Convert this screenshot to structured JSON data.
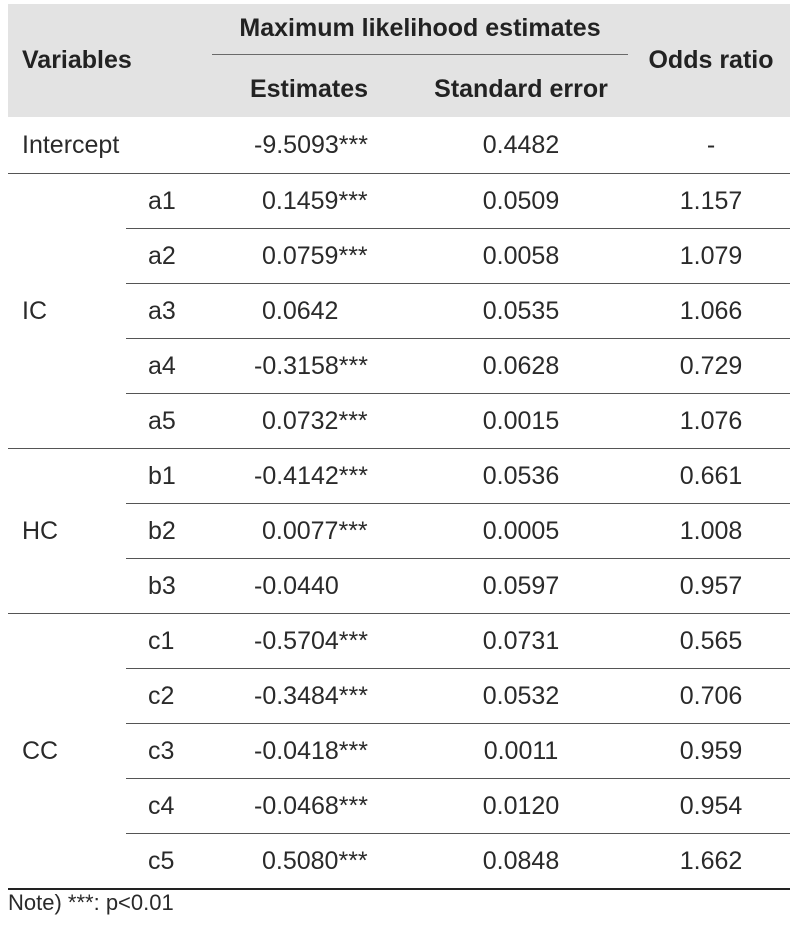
{
  "table": {
    "header": {
      "variables": "Variables",
      "mle": "Maximum likelihood estimates",
      "estimates": "Estimates",
      "standard_error": "Standard error",
      "odds_ratio": "Odds ratio"
    },
    "intercept": {
      "label": "Intercept",
      "estimate": "-9.5093***",
      "se": "0.4482",
      "or": "-"
    },
    "groups": [
      {
        "name": "IC",
        "rows": [
          {
            "var": "a1",
            "estimate": "0.1459***",
            "se": "0.0509",
            "or": "1.157"
          },
          {
            "var": "a2",
            "estimate": "0.0759***",
            "se": "0.0058",
            "or": "1.079"
          },
          {
            "var": "a3",
            "estimate": "0.0642",
            "se": "0.0535",
            "or": "1.066"
          },
          {
            "var": "a4",
            "estimate": "-0.3158***",
            "se": "0.0628",
            "or": "0.729"
          },
          {
            "var": "a5",
            "estimate": "0.0732***",
            "se": "0.0015",
            "or": "1.076"
          }
        ]
      },
      {
        "name": "HC",
        "rows": [
          {
            "var": "b1",
            "estimate": "-0.4142***",
            "se": "0.0536",
            "or": "0.661"
          },
          {
            "var": "b2",
            "estimate": "0.0077***",
            "se": "0.0005",
            "or": "1.008"
          },
          {
            "var": "b3",
            "estimate": "-0.0440",
            "se": "0.0597",
            "or": "0.957"
          }
        ]
      },
      {
        "name": "CC",
        "rows": [
          {
            "var": "c1",
            "estimate": "-0.5704***",
            "se": "0.0731",
            "or": "0.565"
          },
          {
            "var": "c2",
            "estimate": "-0.3484***",
            "se": "0.0532",
            "or": "0.706"
          },
          {
            "var": "c3",
            "estimate": "-0.0418***",
            "se": "0.0011",
            "or": "0.959"
          },
          {
            "var": "c4",
            "estimate": "-0.0468***",
            "se": "0.0120",
            "or": "0.954"
          },
          {
            "var": "c5",
            "estimate": "0.5080***",
            "se": "0.0848",
            "or": "1.662"
          }
        ]
      }
    ]
  },
  "note": "Note) ***: p<0.01"
}
